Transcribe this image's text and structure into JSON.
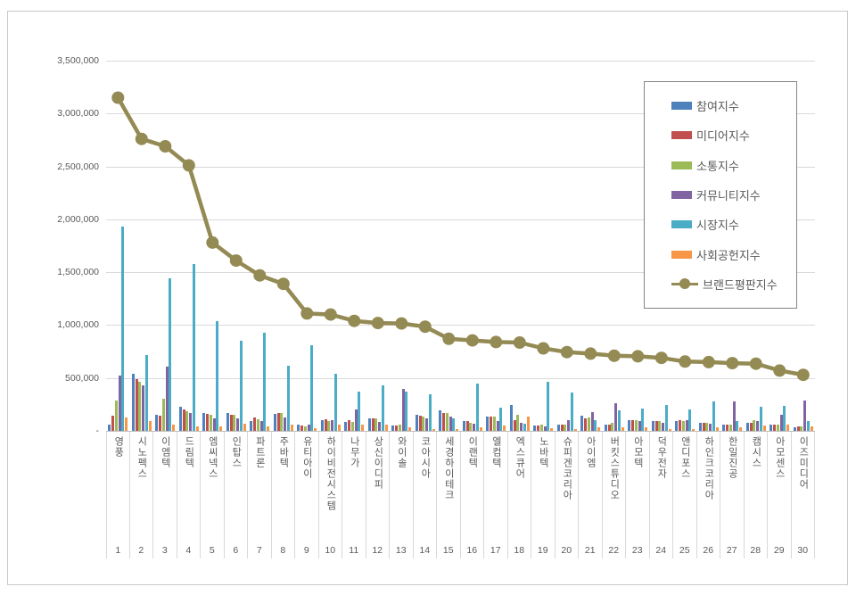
{
  "chart": {
    "title": "",
    "y_axis_ticks": [
      "3,500,000",
      "3,000,000",
      "2,500,000",
      "2,000,000",
      "1,500,000",
      "1,000,000",
      "500,000",
      "-"
    ],
    "colors": {
      "grid": "#d9d9d9",
      "axis": "#bfbfbf",
      "text": "#595959",
      "frame_border": "#c9c9c9",
      "legend_border": "#848484"
    }
  },
  "chart_data": {
    "type": "bar+line",
    "title": "",
    "xlabel": "",
    "ylabel": "",
    "ylim": [
      0,
      3500000
    ],
    "y_tick_interval": 500000,
    "grid": true,
    "legend_position": "right-box",
    "categories": [
      "영풍",
      "시노펙스",
      "이엠텍",
      "드림텍",
      "엠씨넥스",
      "인탑스",
      "파트론",
      "주바텍",
      "유티아이",
      "하이비전시스템",
      "나무가",
      "상신이디피",
      "와이솔",
      "코아시아",
      "세경하이테크",
      "이랜텍",
      "엘컴텍",
      "엑스큐어",
      "노바텍",
      "슈피겐코리아",
      "아이엠",
      "버킷스튜디오",
      "아모텍",
      "덕우전자",
      "앤디포스",
      "하인크코리아",
      "한일진공",
      "캠시스",
      "아모센스",
      "이즈미디어"
    ],
    "ranks": [
      "1",
      "2",
      "3",
      "4",
      "5",
      "6",
      "7",
      "8",
      "9",
      "10",
      "11",
      "12",
      "13",
      "14",
      "15",
      "16",
      "17",
      "18",
      "19",
      "20",
      "21",
      "22",
      "23",
      "24",
      "25",
      "26",
      "27",
      "28",
      "29",
      "30"
    ],
    "series": [
      {
        "name": "참여지수",
        "type": "bar",
        "color": "#4F81BD",
        "values": [
          60000,
          540000,
          155000,
          230000,
          165000,
          165000,
          95000,
          160000,
          55000,
          100000,
          85000,
          120000,
          50000,
          150000,
          195000,
          95000,
          135000,
          245000,
          50000,
          55000,
          140000,
          60000,
          105000,
          95000,
          95000,
          80000,
          55000,
          80000,
          55000,
          35000
        ]
      },
      {
        "name": "미디어지수",
        "type": "bar",
        "color": "#C0504D",
        "values": [
          140000,
          490000,
          145000,
          200000,
          160000,
          155000,
          130000,
          170000,
          50000,
          110000,
          100000,
          120000,
          50000,
          140000,
          170000,
          95000,
          135000,
          105000,
          50000,
          55000,
          120000,
          60000,
          105000,
          95000,
          100000,
          80000,
          55000,
          80000,
          60000,
          45000
        ]
      },
      {
        "name": "소통지수",
        "type": "bar",
        "color": "#9BBB59",
        "values": [
          290000,
          465000,
          300000,
          185000,
          155000,
          150000,
          110000,
          165000,
          45000,
          95000,
          85000,
          115000,
          60000,
          135000,
          165000,
          80000,
          135000,
          155000,
          55000,
          55000,
          130000,
          80000,
          100000,
          95000,
          95000,
          80000,
          60000,
          100000,
          60000,
          45000
        ]
      },
      {
        "name": "커뮤니티지수",
        "type": "bar",
        "color": "#8064A2",
        "values": [
          520000,
          430000,
          605000,
          170000,
          120000,
          115000,
          95000,
          130000,
          55000,
          100000,
          205000,
          85000,
          400000,
          120000,
          135000,
          65000,
          95000,
          80000,
          40000,
          105000,
          175000,
          260000,
          95000,
          80000,
          105000,
          65000,
          275000,
          95000,
          155000,
          290000
        ]
      },
      {
        "name": "시장지수",
        "type": "bar",
        "color": "#4BACC6",
        "values": [
          1930000,
          720000,
          1440000,
          1580000,
          1040000,
          850000,
          930000,
          620000,
          810000,
          540000,
          370000,
          430000,
          375000,
          345000,
          120000,
          450000,
          220000,
          65000,
          465000,
          365000,
          100000,
          195000,
          215000,
          245000,
          205000,
          280000,
          95000,
          225000,
          235000,
          95000
        ]
      },
      {
        "name": "사회공헌지수",
        "type": "bar",
        "color": "#F79646",
        "values": [
          125000,
          90000,
          60000,
          40000,
          45000,
          65000,
          40000,
          55000,
          25000,
          55000,
          60000,
          55000,
          35000,
          20000,
          20000,
          35000,
          50000,
          135000,
          25000,
          20000,
          35000,
          30000,
          35000,
          20000,
          20000,
          35000,
          35000,
          50000,
          55000,
          45000
        ]
      },
      {
        "name": "브랜드평판지수",
        "type": "line",
        "color": "#948A54",
        "values": [
          3150000,
          2760000,
          2690000,
          2510000,
          1780000,
          1610000,
          1470000,
          1390000,
          1110000,
          1100000,
          1040000,
          1020000,
          1015000,
          985000,
          870000,
          855000,
          840000,
          835000,
          780000,
          745000,
          730000,
          710000,
          705000,
          690000,
          655000,
          650000,
          640000,
          635000,
          570000,
          530000
        ]
      }
    ]
  }
}
